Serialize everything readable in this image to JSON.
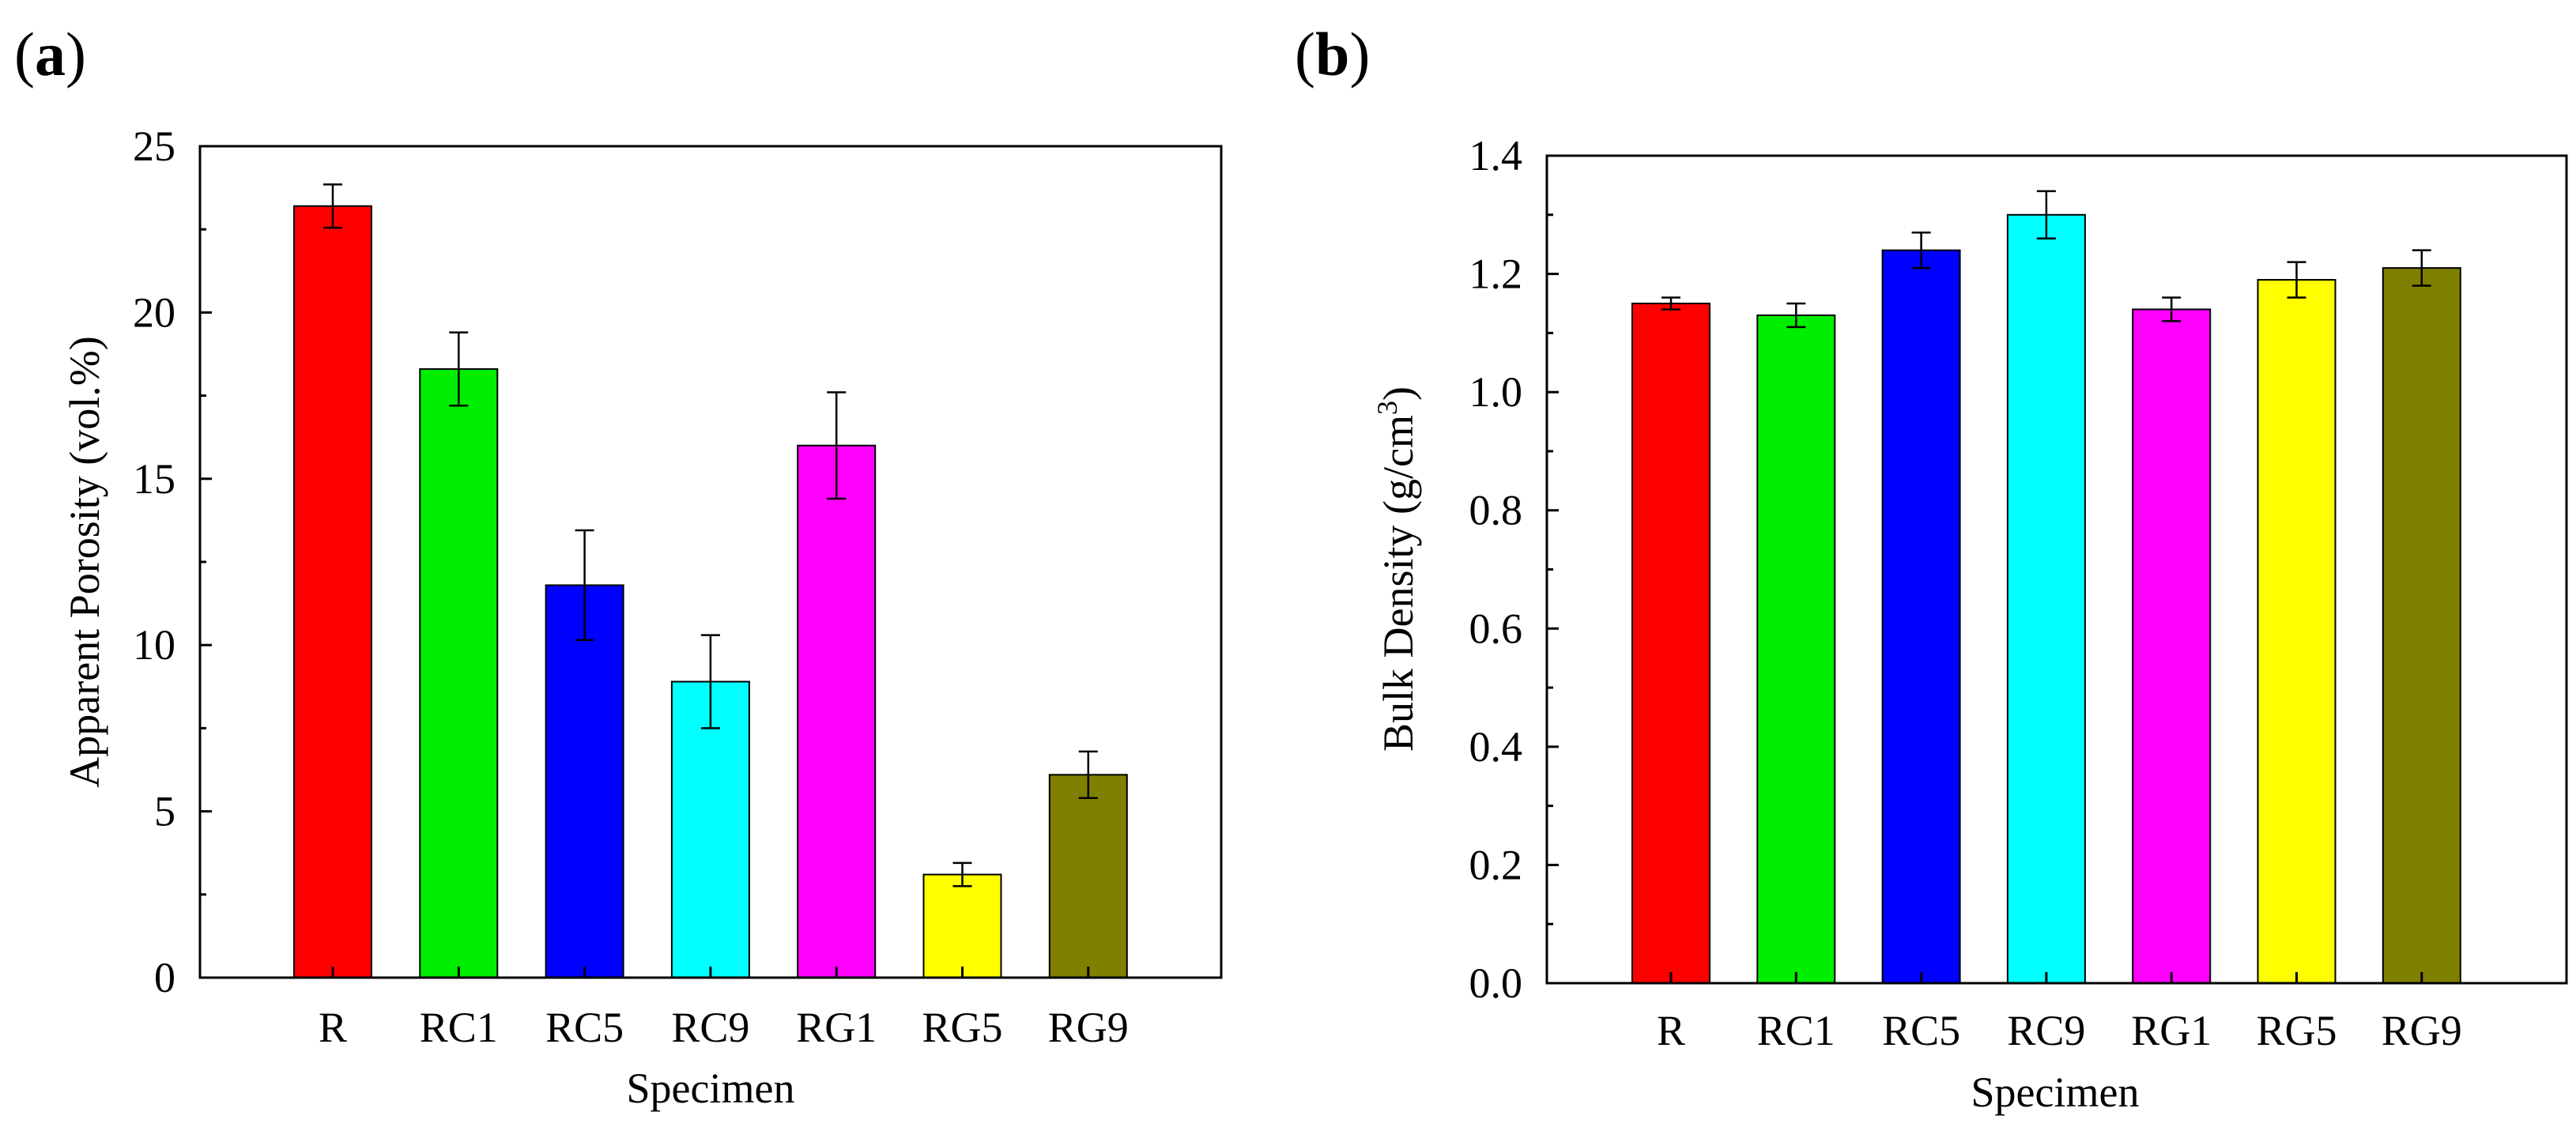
{
  "panels": [
    {
      "label_open": "(",
      "label_letter": "a",
      "label_close": ")"
    },
    {
      "label_open": "(",
      "label_letter": "b",
      "label_close": ")"
    }
  ],
  "chart_data": [
    {
      "type": "bar",
      "title": "",
      "xlabel": "Specimen",
      "ylabel": "Apparent Porosity (vol.%)",
      "categories": [
        "R",
        "RC1",
        "RC5",
        "RC9",
        "RG1",
        "RG5",
        "RG9"
      ],
      "values": [
        23.2,
        18.3,
        11.8,
        8.9,
        16.0,
        3.1,
        6.1
      ],
      "errors": [
        0.65,
        1.1,
        1.65,
        1.4,
        1.6,
        0.35,
        0.7
      ],
      "colors": [
        "#ff0000",
        "#00ee00",
        "#0000ff",
        "#00ffff",
        "#ff00ff",
        "#ffff00",
        "#808000"
      ],
      "ylim": [
        0,
        25
      ],
      "yticks": [
        0,
        5,
        10,
        15,
        20,
        25
      ],
      "ytick_labels": [
        "0",
        "5",
        "10",
        "15",
        "20",
        "25"
      ],
      "grid": false
    },
    {
      "type": "bar",
      "title": "",
      "xlabel": "Specimen",
      "ylabel": "Bulk Density (g/cm",
      "ylabel_sup": "3",
      "ylabel_end": ")",
      "categories": [
        "R",
        "RC1",
        "RC5",
        "RC9",
        "RG1",
        "RG5",
        "RG9"
      ],
      "values": [
        1.15,
        1.13,
        1.24,
        1.3,
        1.14,
        1.19,
        1.21
      ],
      "errors": [
        0.01,
        0.02,
        0.03,
        0.04,
        0.02,
        0.03,
        0.03
      ],
      "colors": [
        "#ff0000",
        "#00ee00",
        "#0000ff",
        "#00ffff",
        "#ff00ff",
        "#ffff00",
        "#808000"
      ],
      "ylim": [
        0,
        1.4
      ],
      "yticks": [
        0,
        0.2,
        0.4,
        0.6,
        0.8,
        1.0,
        1.2,
        1.4
      ],
      "ytick_labels": [
        "0.0",
        "0.2",
        "0.4",
        "0.6",
        "0.8",
        "1.0",
        "1.2",
        "1.4"
      ],
      "grid": false
    }
  ]
}
